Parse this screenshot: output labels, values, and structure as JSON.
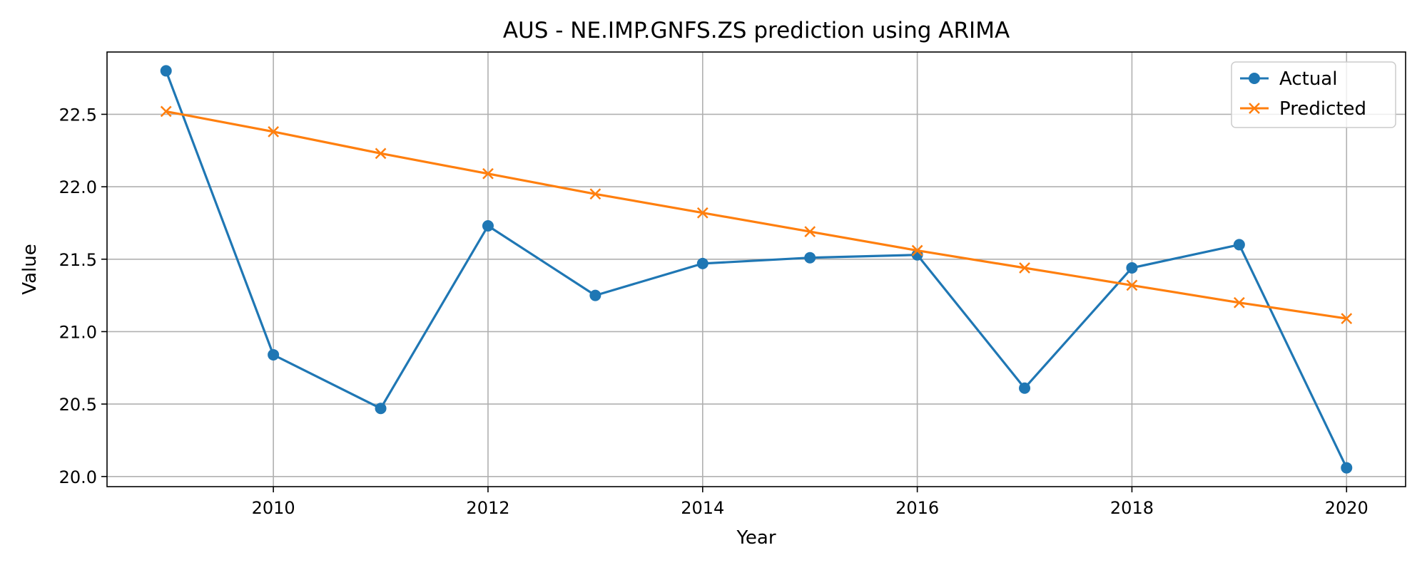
{
  "chart_data": {
    "type": "line",
    "title": "AUS - NE.IMP.GNFS.ZS prediction using ARIMA",
    "xlabel": "Year",
    "ylabel": "Value",
    "xlim": [
      2008.45,
      2020.55
    ],
    "ylim": [
      19.93,
      22.93
    ],
    "x_ticks": [
      2010,
      2012,
      2014,
      2016,
      2018,
      2020
    ],
    "y_ticks": [
      20.0,
      20.5,
      21.0,
      21.5,
      22.0,
      22.5
    ],
    "grid": true,
    "legend_position": "top-right",
    "x": [
      2009,
      2010,
      2011,
      2012,
      2013,
      2014,
      2015,
      2016,
      2017,
      2018,
      2019,
      2020
    ],
    "series": [
      {
        "name": "Actual",
        "color": "#1f77b4",
        "marker": "circle",
        "values": [
          22.8,
          20.84,
          20.47,
          21.73,
          21.25,
          21.47,
          21.51,
          21.53,
          20.61,
          21.44,
          21.6,
          20.06
        ]
      },
      {
        "name": "Predicted",
        "color": "#ff7f0e",
        "marker": "x",
        "values": [
          22.52,
          22.38,
          22.23,
          22.09,
          21.95,
          21.82,
          21.69,
          21.56,
          21.44,
          21.32,
          21.2,
          21.09
        ]
      }
    ]
  }
}
